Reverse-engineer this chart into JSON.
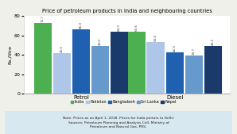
{
  "title": "Price of petroleum products in India and neighbouring countries",
  "ylabel": "Rs./litre",
  "categories": [
    "Petrol",
    "Diesel"
  ],
  "countries": [
    "India",
    "Pakistan",
    "Bangladesh",
    "Sri Lanka",
    "Nepal"
  ],
  "petrol_values": [
    72.7,
    42.0,
    66.0,
    49.0,
    64.3
  ],
  "diesel_values": [
    63.6,
    53.6,
    42.5,
    39.7,
    49.2
  ],
  "bar_colors": [
    "#4caf50",
    "#aec6e8",
    "#2060b0",
    "#6699cc",
    "#1a3a6b"
  ],
  "ylim": [
    0,
    80
  ],
  "yticks": [
    0,
    20,
    40,
    60,
    80
  ],
  "note_line1": "Note: Prices as on April 1, 2018. Prices for India pertain to Delhi.",
  "note_line2": "Sources: Petroleum Planning and Analysis Cell, Ministry of",
  "note_line3": "Petroleum and Natural Gas; PRS.",
  "bg_color": "#f0f0eb",
  "note_bg": "#d8e8f0",
  "plot_bg": "#ffffff"
}
